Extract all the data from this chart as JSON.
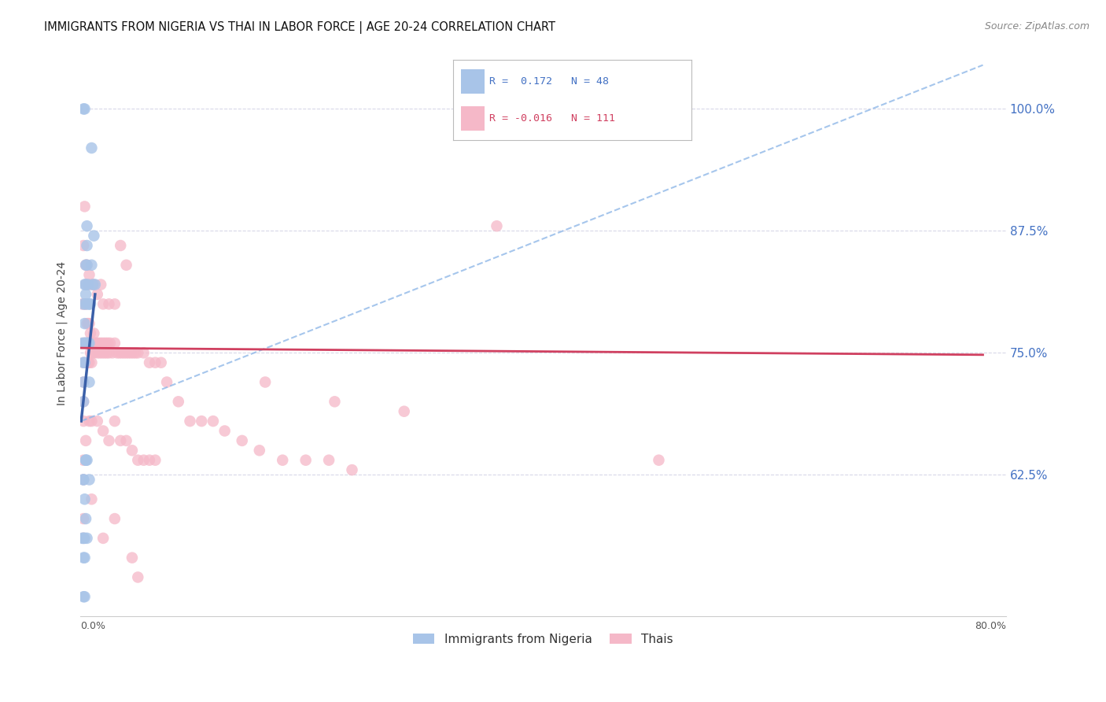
{
  "title": "IMMIGRANTS FROM NIGERIA VS THAI IN LABOR FORCE | AGE 20-24 CORRELATION CHART",
  "source": "Source: ZipAtlas.com",
  "ylabel": "In Labor Force | Age 20-24",
  "nigeria_R": 0.172,
  "thai_R": -0.016,
  "nigeria_color": "#a8c4e8",
  "thai_color": "#f5b8c8",
  "nigeria_line_color": "#3a5fa8",
  "thai_line_color": "#d04060",
  "dashed_line_color": "#90b8e8",
  "xlim": [
    0.0,
    0.8
  ],
  "ylim": [
    0.48,
    1.06
  ],
  "ytick_vals": [
    0.625,
    0.75,
    0.875,
    1.0
  ],
  "ytick_labels": [
    "62.5%",
    "75.0%",
    "87.5%",
    "100.0%"
  ],
  "background_color": "#ffffff",
  "grid_color": "#d8d8e8",
  "nigeria_points_x": [
    0.002,
    0.003,
    0.003,
    0.003,
    0.003,
    0.004,
    0.004,
    0.004,
    0.004,
    0.005,
    0.005,
    0.005,
    0.005,
    0.005,
    0.006,
    0.006,
    0.006,
    0.006,
    0.007,
    0.007,
    0.007,
    0.008,
    0.008,
    0.008,
    0.009,
    0.01,
    0.01,
    0.011,
    0.012,
    0.013,
    0.002,
    0.003,
    0.003,
    0.004,
    0.004,
    0.005,
    0.006,
    0.003,
    0.004,
    0.005,
    0.003,
    0.004,
    0.003,
    0.004,
    0.005,
    0.006,
    0.003,
    0.008
  ],
  "nigeria_points_y": [
    0.76,
    0.74,
    0.72,
    0.7,
    0.8,
    0.82,
    0.78,
    0.76,
    0.74,
    0.84,
    0.82,
    0.81,
    0.8,
    0.76,
    0.88,
    0.86,
    0.84,
    0.76,
    0.82,
    0.8,
    0.76,
    0.8,
    0.76,
    0.72,
    0.8,
    0.96,
    0.84,
    0.82,
    0.87,
    0.82,
    0.56,
    0.56,
    0.54,
    0.56,
    0.54,
    0.58,
    0.56,
    1.0,
    1.0,
    0.64,
    0.5,
    0.5,
    0.62,
    0.6,
    0.64,
    0.64,
    0.62,
    0.62
  ],
  "thai_points_x": [
    0.002,
    0.003,
    0.003,
    0.003,
    0.003,
    0.003,
    0.004,
    0.004,
    0.005,
    0.005,
    0.006,
    0.006,
    0.006,
    0.007,
    0.007,
    0.007,
    0.008,
    0.008,
    0.008,
    0.009,
    0.009,
    0.01,
    0.01,
    0.011,
    0.012,
    0.012,
    0.013,
    0.014,
    0.015,
    0.016,
    0.017,
    0.018,
    0.019,
    0.02,
    0.021,
    0.022,
    0.023,
    0.024,
    0.025,
    0.026,
    0.028,
    0.03,
    0.032,
    0.034,
    0.036,
    0.038,
    0.04,
    0.042,
    0.044,
    0.046,
    0.048,
    0.05,
    0.055,
    0.06,
    0.065,
    0.07,
    0.003,
    0.004,
    0.005,
    0.006,
    0.007,
    0.008,
    0.01,
    0.012,
    0.015,
    0.018,
    0.02,
    0.025,
    0.03,
    0.035,
    0.04,
    0.003,
    0.003,
    0.005,
    0.008,
    0.01,
    0.015,
    0.02,
    0.025,
    0.03,
    0.035,
    0.04,
    0.045,
    0.05,
    0.055,
    0.06,
    0.065,
    0.003,
    0.003,
    0.01,
    0.02,
    0.03,
    0.045,
    0.05,
    0.36,
    0.5,
    0.16,
    0.22,
    0.28,
    0.075,
    0.085,
    0.095,
    0.105,
    0.115,
    0.125,
    0.14,
    0.155,
    0.175,
    0.195,
    0.215,
    0.235
  ],
  "thai_points_y": [
    0.8,
    0.76,
    0.74,
    0.72,
    0.7,
    0.68,
    0.8,
    0.76,
    0.82,
    0.8,
    0.78,
    0.76,
    0.74,
    0.78,
    0.76,
    0.74,
    0.78,
    0.76,
    0.74,
    0.77,
    0.75,
    0.76,
    0.74,
    0.75,
    0.77,
    0.75,
    0.76,
    0.76,
    0.75,
    0.76,
    0.75,
    0.76,
    0.75,
    0.76,
    0.75,
    0.76,
    0.75,
    0.76,
    0.75,
    0.76,
    0.75,
    0.76,
    0.75,
    0.75,
    0.75,
    0.75,
    0.75,
    0.75,
    0.75,
    0.75,
    0.75,
    0.75,
    0.75,
    0.74,
    0.74,
    0.74,
    0.86,
    0.9,
    0.84,
    0.84,
    0.82,
    0.83,
    0.82,
    0.82,
    0.81,
    0.82,
    0.8,
    0.8,
    0.8,
    0.86,
    0.84,
    0.64,
    0.62,
    0.66,
    0.68,
    0.68,
    0.68,
    0.67,
    0.66,
    0.68,
    0.66,
    0.66,
    0.65,
    0.64,
    0.64,
    0.64,
    0.64,
    0.58,
    0.56,
    0.6,
    0.56,
    0.58,
    0.54,
    0.52,
    0.88,
    0.64,
    0.72,
    0.7,
    0.69,
    0.72,
    0.7,
    0.68,
    0.68,
    0.68,
    0.67,
    0.66,
    0.65,
    0.64,
    0.64,
    0.64,
    0.63
  ],
  "nigeria_line_x": [
    0.001,
    0.013
  ],
  "nigeria_line_y": [
    0.68,
    0.81
  ],
  "dashed_line_x": [
    0.001,
    0.78
  ],
  "dashed_line_y": [
    0.68,
    1.045
  ],
  "thai_line_x": [
    0.001,
    0.78
  ],
  "thai_line_y": [
    0.755,
    0.748
  ]
}
